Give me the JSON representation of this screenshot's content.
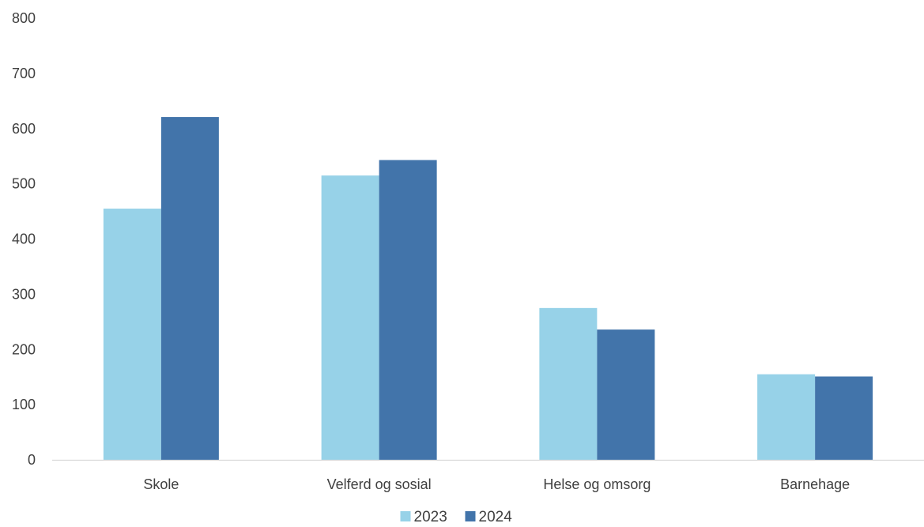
{
  "chart_data": {
    "type": "bar",
    "categories": [
      "Skole",
      "Velferd og sosial",
      "Helse og omsorg",
      "Barnehage"
    ],
    "series": [
      {
        "name": "2023",
        "values": [
          455,
          515,
          275,
          155
        ],
        "color": "#97d2e8"
      },
      {
        "name": "2024",
        "values": [
          621,
          543,
          236,
          151
        ],
        "color": "#4274aa"
      }
    ],
    "y_ticks": [
      "0",
      "100",
      "200",
      "300",
      "400",
      "500",
      "600",
      "700",
      "800"
    ],
    "ylim": [
      0,
      800
    ],
    "grid": false,
    "legend_position": "bottom",
    "title": "",
    "xlabel": "",
    "ylabel": ""
  }
}
